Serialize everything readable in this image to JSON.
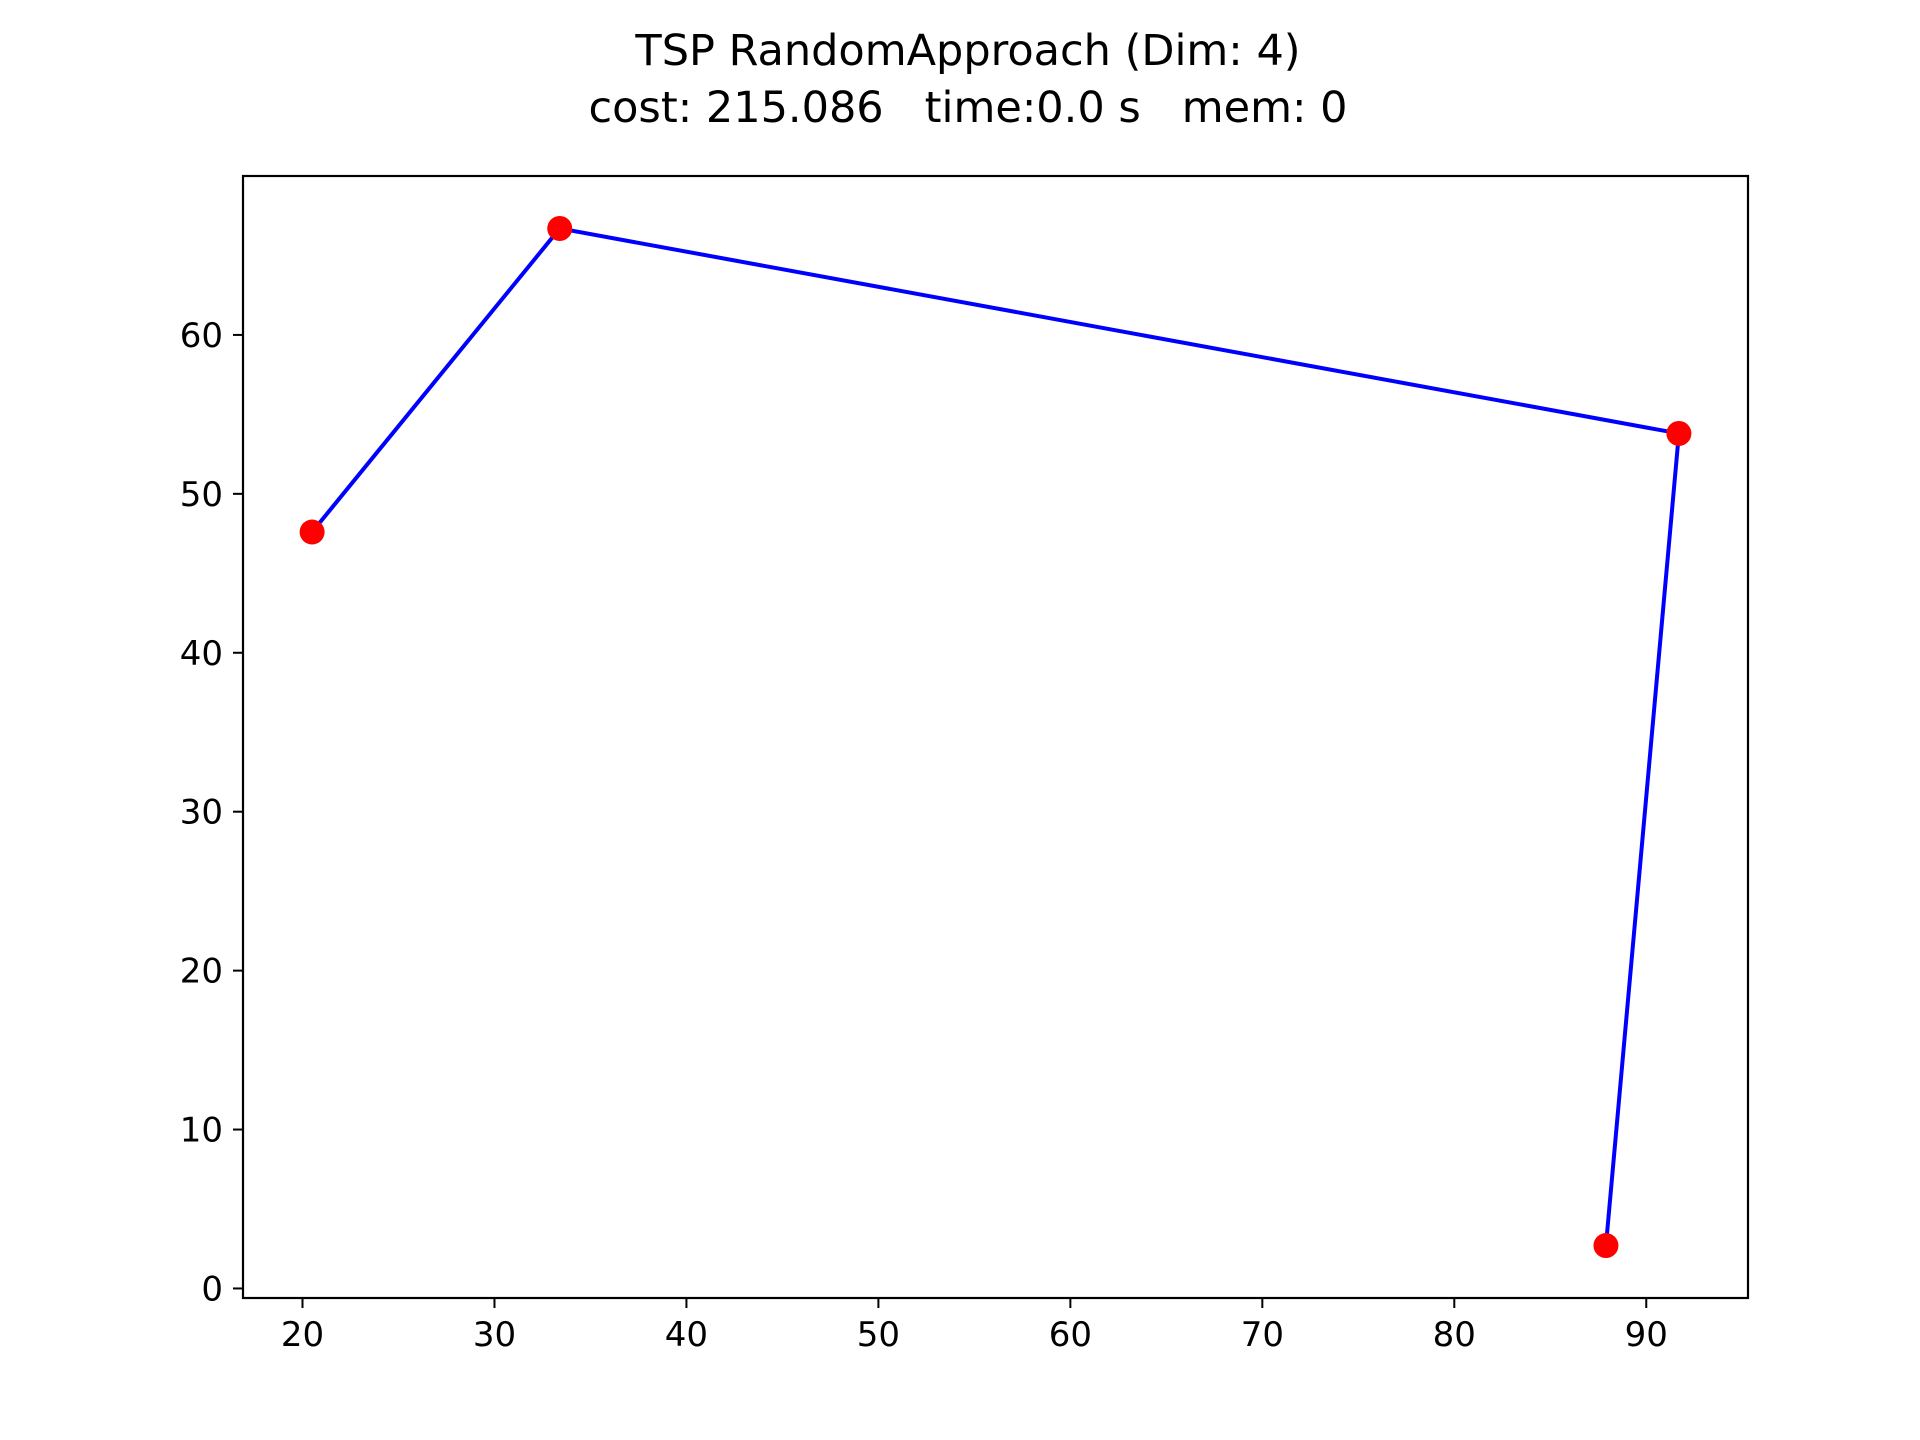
{
  "chart_data": {
    "type": "line",
    "title": "TSP RandomApproach (Dim: 4)",
    "subtitle": "cost: 215.086   time:0.0 s   mem: 0",
    "xlabel": "",
    "ylabel": "",
    "xlim": [
      16.9,
      95.3
    ],
    "ylim": [
      -0.6,
      70.0
    ],
    "xticks": [
      20,
      30,
      40,
      50,
      60,
      70,
      80,
      90
    ],
    "yticks": [
      0,
      10,
      20,
      30,
      40,
      50,
      60
    ],
    "grid": false,
    "series": [
      {
        "type": "line",
        "color": "#0000ff",
        "points": [
          {
            "x": 20.5,
            "y": 47.6
          },
          {
            "x": 33.4,
            "y": 66.7
          },
          {
            "x": 91.7,
            "y": 53.8
          },
          {
            "x": 87.9,
            "y": 2.7
          }
        ]
      },
      {
        "type": "scatter",
        "color": "#ff0000",
        "points": [
          {
            "x": 20.5,
            "y": 47.6
          },
          {
            "x": 33.4,
            "y": 66.7
          },
          {
            "x": 91.7,
            "y": 53.8
          },
          {
            "x": 87.9,
            "y": 2.7
          }
        ]
      }
    ]
  }
}
